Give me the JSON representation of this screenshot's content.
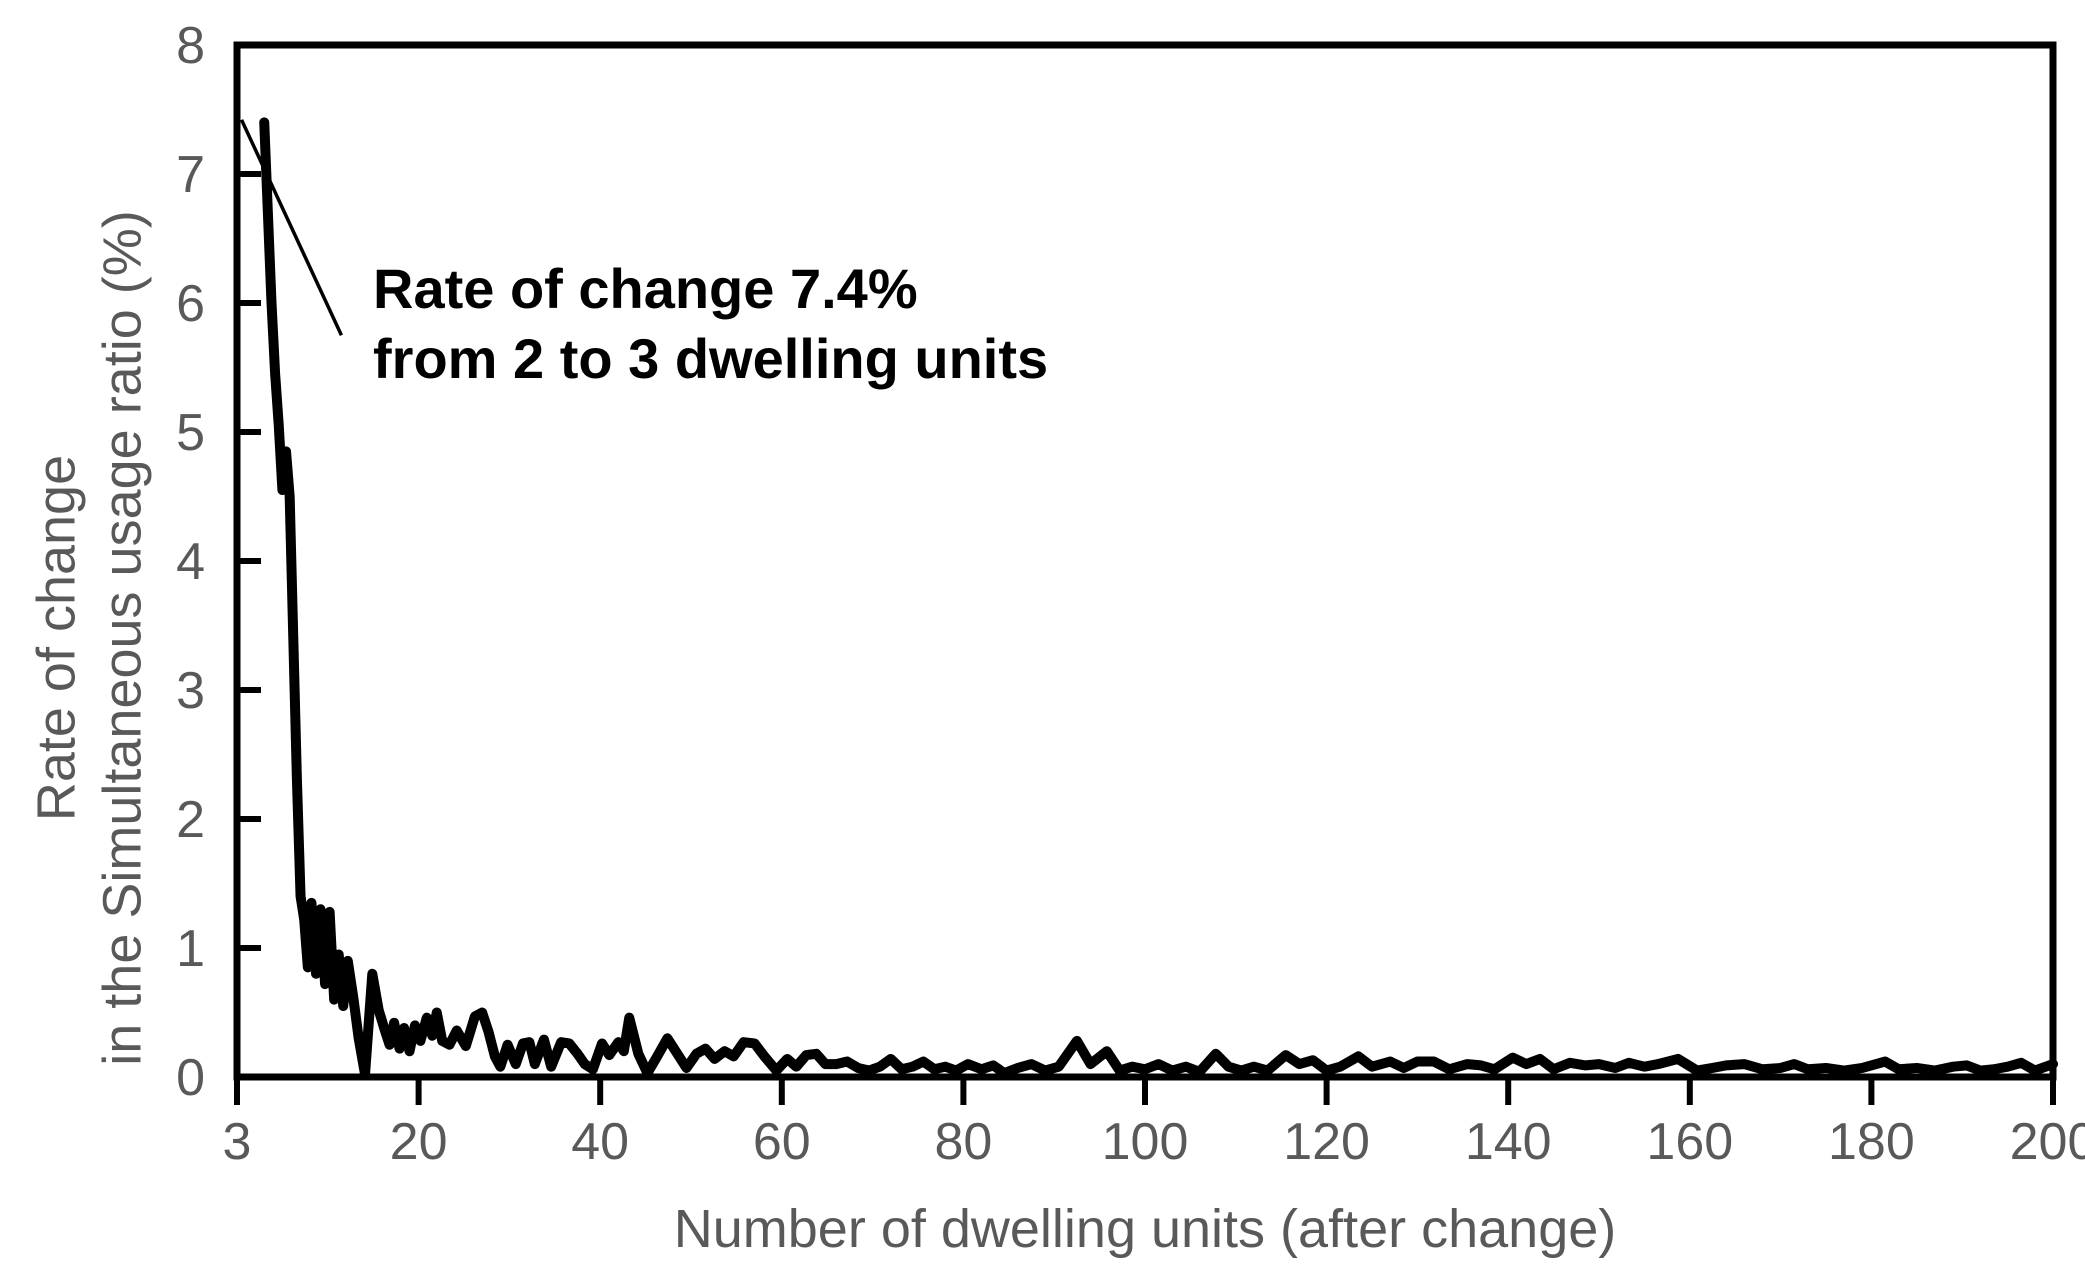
{
  "colors": {
    "background": "#ffffff",
    "axis": "#000000",
    "tick_label": "#595959",
    "axis_title": "#595959",
    "series_line": "#000000",
    "annotation_text": "#000000",
    "leader_line": "#000000"
  },
  "chart_data": {
    "type": "line",
    "title": "",
    "xlabel": "Number of dwelling units (after change)",
    "ylabel_line1": "Rate of change",
    "ylabel_line2": "in the Simultaneous usage ratio (%)",
    "xlim": [
      0,
      200
    ],
    "ylim": [
      0,
      8
    ],
    "grid": false,
    "legend": null,
    "x_ticks": [
      {
        "label": "3",
        "pos": 0
      },
      {
        "label": "20",
        "pos": 20
      },
      {
        "label": "40",
        "pos": 40
      },
      {
        "label": "60",
        "pos": 60
      },
      {
        "label": "80",
        "pos": 80
      },
      {
        "label": "100",
        "pos": 100
      },
      {
        "label": "120",
        "pos": 120
      },
      {
        "label": "140",
        "pos": 140
      },
      {
        "label": "160",
        "pos": 160
      },
      {
        "label": "180",
        "pos": 180
      },
      {
        "label": "200",
        "pos": 200
      }
    ],
    "y_ticks": [
      {
        "label": "0",
        "pos": 0
      },
      {
        "label": "1",
        "pos": 1
      },
      {
        "label": "2",
        "pos": 2
      },
      {
        "label": "3",
        "pos": 3
      },
      {
        "label": "4",
        "pos": 4
      },
      {
        "label": "5",
        "pos": 5
      },
      {
        "label": "6",
        "pos": 6
      },
      {
        "label": "7",
        "pos": 7
      },
      {
        "label": "8",
        "pos": 8
      }
    ],
    "annotation": {
      "line1": "Rate of change 7.4%",
      "line2": "from 2 to 3 dwelling units",
      "leader_from": [
        0.5,
        7.42
      ],
      "leader_to": [
        11.5,
        5.75
      ]
    },
    "series": [
      {
        "name": "Rate of change in the simultaneous usage ratio",
        "color": "#000000",
        "peak_value_pct": 7.4,
        "peak_at_units": 3,
        "points": [
          [
            3,
            7.4
          ],
          [
            3.4,
            6.7
          ],
          [
            3.8,
            6.0
          ],
          [
            4.2,
            5.45
          ],
          [
            4.6,
            5.05
          ],
          [
            5.0,
            4.55
          ],
          [
            5.4,
            4.85
          ],
          [
            5.8,
            4.5
          ],
          [
            6.2,
            3.4
          ],
          [
            6.6,
            2.3
          ],
          [
            7.0,
            1.4
          ],
          [
            7.4,
            1.22
          ],
          [
            7.8,
            0.85
          ],
          [
            8.2,
            1.35
          ],
          [
            8.7,
            0.8
          ],
          [
            9.2,
            1.3
          ],
          [
            9.7,
            0.72
          ],
          [
            10.2,
            1.28
          ],
          [
            10.7,
            0.6
          ],
          [
            11.2,
            0.95
          ],
          [
            11.7,
            0.55
          ],
          [
            12.2,
            0.9
          ],
          [
            12.8,
            0.62
          ],
          [
            13.4,
            0.3
          ],
          [
            14.1,
            0.02
          ],
          [
            14.9,
            0.8
          ],
          [
            15.6,
            0.52
          ],
          [
            16.2,
            0.38
          ],
          [
            16.8,
            0.25
          ],
          [
            17.3,
            0.42
          ],
          [
            17.9,
            0.22
          ],
          [
            18.4,
            0.38
          ],
          [
            19.0,
            0.2
          ],
          [
            19.6,
            0.4
          ],
          [
            20.2,
            0.28
          ],
          [
            20.9,
            0.46
          ],
          [
            21.5,
            0.32
          ],
          [
            22.0,
            0.5
          ],
          [
            22.6,
            0.28
          ],
          [
            23.4,
            0.25
          ],
          [
            24.2,
            0.36
          ],
          [
            25.2,
            0.24
          ],
          [
            26.2,
            0.47
          ],
          [
            27.0,
            0.5
          ],
          [
            27.7,
            0.35
          ],
          [
            28.4,
            0.16
          ],
          [
            29.0,
            0.08
          ],
          [
            29.8,
            0.25
          ],
          [
            30.7,
            0.1
          ],
          [
            31.5,
            0.26
          ],
          [
            32.2,
            0.27
          ],
          [
            32.8,
            0.1
          ],
          [
            33.8,
            0.29
          ],
          [
            34.6,
            0.08
          ],
          [
            35.7,
            0.27
          ],
          [
            36.6,
            0.26
          ],
          [
            37.5,
            0.18
          ],
          [
            38.3,
            0.1
          ],
          [
            39.2,
            0.06
          ],
          [
            40.2,
            0.26
          ],
          [
            41.0,
            0.17
          ],
          [
            42.0,
            0.27
          ],
          [
            42.6,
            0.2
          ],
          [
            43.2,
            0.46
          ],
          [
            44.2,
            0.18
          ],
          [
            45.2,
            0.03
          ],
          [
            46.2,
            0.15
          ],
          [
            47.4,
            0.3
          ],
          [
            48.5,
            0.18
          ],
          [
            49.5,
            0.07
          ],
          [
            50.6,
            0.18
          ],
          [
            51.6,
            0.22
          ],
          [
            52.6,
            0.14
          ],
          [
            53.7,
            0.2
          ],
          [
            54.7,
            0.16
          ],
          [
            55.8,
            0.27
          ],
          [
            57.0,
            0.26
          ],
          [
            58.2,
            0.15
          ],
          [
            59.4,
            0.05
          ],
          [
            60.6,
            0.14
          ],
          [
            61.6,
            0.08
          ],
          [
            62.7,
            0.17
          ],
          [
            63.8,
            0.18
          ],
          [
            64.8,
            0.1
          ],
          [
            66.0,
            0.1
          ],
          [
            67.2,
            0.12
          ],
          [
            68.4,
            0.07
          ],
          [
            69.6,
            0.05
          ],
          [
            70.8,
            0.08
          ],
          [
            72.0,
            0.14
          ],
          [
            73.2,
            0.06
          ],
          [
            74.4,
            0.08
          ],
          [
            75.6,
            0.12
          ],
          [
            76.8,
            0.06
          ],
          [
            78.0,
            0.08
          ],
          [
            79.2,
            0.05
          ],
          [
            80.5,
            0.1
          ],
          [
            82.0,
            0.06
          ],
          [
            83.3,
            0.09
          ],
          [
            84.5,
            0.03
          ],
          [
            86.0,
            0.07
          ],
          [
            87.5,
            0.1
          ],
          [
            89.0,
            0.05
          ],
          [
            90.5,
            0.08
          ],
          [
            92.5,
            0.28
          ],
          [
            94.0,
            0.1
          ],
          [
            95.8,
            0.2
          ],
          [
            97.2,
            0.05
          ],
          [
            98.6,
            0.08
          ],
          [
            100.0,
            0.06
          ],
          [
            101.5,
            0.1
          ],
          [
            103.0,
            0.05
          ],
          [
            104.5,
            0.08
          ],
          [
            106.0,
            0.04
          ],
          [
            107.8,
            0.18
          ],
          [
            109.2,
            0.08
          ],
          [
            110.6,
            0.05
          ],
          [
            112.0,
            0.08
          ],
          [
            113.5,
            0.05
          ],
          [
            115.5,
            0.17
          ],
          [
            117.0,
            0.1
          ],
          [
            118.5,
            0.13
          ],
          [
            120.0,
            0.05
          ],
          [
            121.5,
            0.08
          ],
          [
            123.5,
            0.16
          ],
          [
            125.0,
            0.08
          ],
          [
            127.0,
            0.12
          ],
          [
            128.5,
            0.07
          ],
          [
            130.0,
            0.12
          ],
          [
            131.8,
            0.12
          ],
          [
            133.5,
            0.06
          ],
          [
            135.5,
            0.1
          ],
          [
            137.0,
            0.09
          ],
          [
            138.5,
            0.06
          ],
          [
            140.5,
            0.15
          ],
          [
            142.0,
            0.1
          ],
          [
            143.5,
            0.14
          ],
          [
            145.0,
            0.06
          ],
          [
            146.8,
            0.11
          ],
          [
            148.5,
            0.09
          ],
          [
            150.0,
            0.1
          ],
          [
            151.8,
            0.07
          ],
          [
            153.3,
            0.11
          ],
          [
            155.0,
            0.08
          ],
          [
            156.5,
            0.1
          ],
          [
            158.7,
            0.14
          ],
          [
            160.8,
            0.05
          ],
          [
            162.5,
            0.07
          ],
          [
            164.0,
            0.09
          ],
          [
            166.0,
            0.1
          ],
          [
            168.0,
            0.06
          ],
          [
            170.0,
            0.07
          ],
          [
            171.5,
            0.1
          ],
          [
            173.0,
            0.06
          ],
          [
            175.0,
            0.07
          ],
          [
            177.0,
            0.05
          ],
          [
            179.0,
            0.07
          ],
          [
            181.5,
            0.12
          ],
          [
            183.0,
            0.06
          ],
          [
            185.0,
            0.07
          ],
          [
            187.0,
            0.05
          ],
          [
            189.0,
            0.08
          ],
          [
            190.5,
            0.09
          ],
          [
            192.0,
            0.05
          ],
          [
            193.5,
            0.06
          ],
          [
            195.0,
            0.08
          ],
          [
            196.5,
            0.11
          ],
          [
            198.0,
            0.05
          ],
          [
            199.2,
            0.08
          ],
          [
            200.0,
            0.1
          ]
        ]
      }
    ]
  }
}
